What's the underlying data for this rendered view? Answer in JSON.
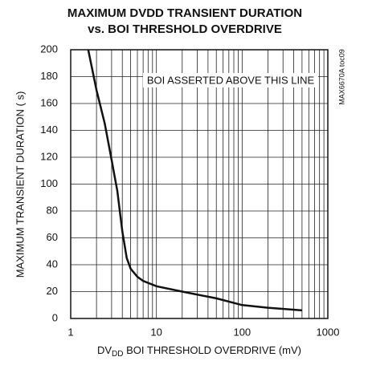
{
  "chart_data": {
    "type": "line",
    "title": [
      "MAXIMUM DVDD TRANSIENT DURATION",
      "vs. BOI THRESHOLD OVERDRIVE"
    ],
    "ylabel": "MAXIMUM TRANSIENT DURATION ( s)",
    "xlabel": {
      "main": "DV",
      "sub": "DD",
      "rest": " BOI THRESHOLD OVERDRIVE (mV)"
    },
    "annotation": "BOI ASSERTED ABOVE THIS LINE",
    "side_label": "MAX6670A toc09",
    "xscale": "log",
    "xlim": [
      1,
      1000
    ],
    "xticks": [
      1,
      10,
      100,
      1000
    ],
    "x_minor_ticks": [
      2,
      3,
      4,
      5,
      6,
      7,
      8,
      9,
      20,
      30,
      40,
      50,
      60,
      70,
      80,
      90,
      200,
      300,
      400,
      500,
      600,
      700,
      800,
      900
    ],
    "ylim": [
      0,
      200
    ],
    "yticks": [
      0,
      20,
      40,
      60,
      80,
      100,
      120,
      140,
      160,
      180,
      200
    ],
    "grid": true,
    "series": [
      {
        "color": "#111111",
        "x": [
          1.6,
          2,
          2.5,
          3,
          3.5,
          4,
          4.5,
          5,
          6,
          7,
          10,
          20,
          50,
          100,
          200,
          500
        ],
        "values": [
          200,
          170,
          145,
          118,
          95,
          65,
          45,
          37,
          31,
          28,
          24,
          20,
          15,
          10,
          8,
          6
        ]
      }
    ]
  }
}
